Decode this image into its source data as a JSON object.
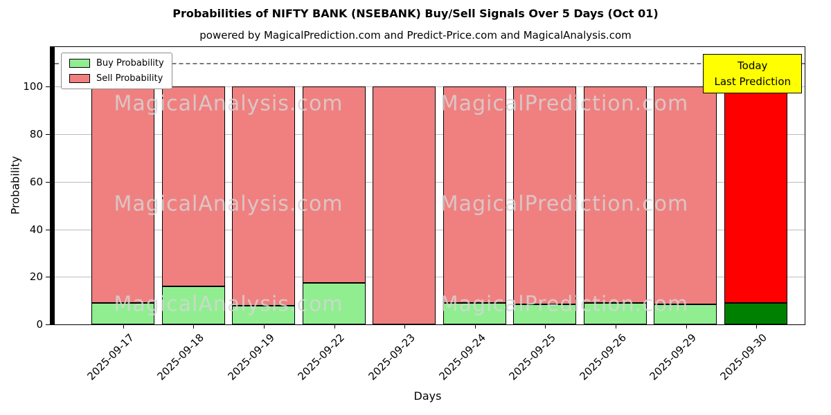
{
  "title": "Probabilities of NIFTY BANK (NSEBANK) Buy/Sell Signals Over 5 Days (Oct 01)",
  "subtitle": "powered by MagicalPrediction.com and Predict-Price.com and MagicalAnalysis.com",
  "legend": {
    "buy_label": "Buy Probability",
    "sell_label": "Sell Probability"
  },
  "annotation": {
    "line1": "Today",
    "line2": "Last Prediction"
  },
  "watermarks": [
    "MagicalAnalysis.com",
    "MagicalPrediction.com"
  ],
  "axes": {
    "xlabel": "Days",
    "ylabel": "Probability",
    "yticks": [
      0,
      20,
      40,
      60,
      80,
      100
    ],
    "ylim": [
      0,
      116.7
    ],
    "dashed_line_y": 110
  },
  "colors": {
    "buy": "#90EE90",
    "sell": "#F08080",
    "buy_today": "#008000",
    "sell_today": "#FF0000",
    "bar_edge": "#000000",
    "annotation_bg": "#FFFF00"
  },
  "chart_data": {
    "type": "bar",
    "stacked": true,
    "title": "Probabilities of NIFTY BANK (NSEBANK) Buy/Sell Signals Over 5 Days (Oct 01)",
    "xlabel": "Days",
    "ylabel": "Probability",
    "ylim": [
      0,
      116.7
    ],
    "grid": true,
    "legend_position": "upper left",
    "categories": [
      "2025-09-17",
      "2025-09-18",
      "2025-09-19",
      "2025-09-22",
      "2025-09-23",
      "2025-09-24",
      "2025-09-25",
      "2025-09-26",
      "2025-09-29",
      "2025-09-30"
    ],
    "series": [
      {
        "name": "Buy Probability",
        "values": [
          9,
          16,
          8,
          17.5,
          0,
          9,
          8.5,
          9,
          8.5,
          9
        ]
      },
      {
        "name": "Sell Probability",
        "values": [
          91,
          84,
          92,
          82.5,
          100,
          91,
          91.5,
          91,
          91.5,
          91
        ]
      }
    ],
    "today_index": 9,
    "annotations": [
      {
        "text": "Today Last Prediction",
        "x": "2025-09-30",
        "y": 110
      }
    ]
  }
}
